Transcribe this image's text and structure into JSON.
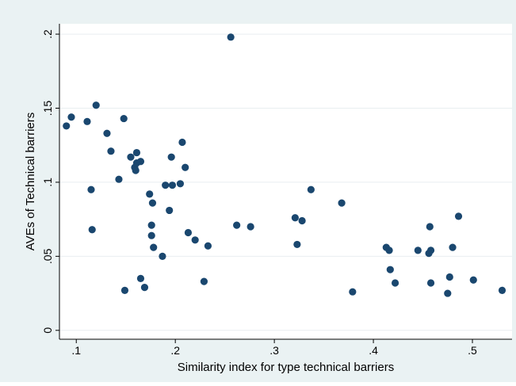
{
  "chart_data": {
    "type": "scatter",
    "title": "",
    "xlabel": "Similarity index for type technical barriers",
    "ylabel": "AVEs of Technical barriers",
    "xlim": [
      0.083,
      0.54
    ],
    "ylim": [
      -0.006,
      0.207
    ],
    "xticks": [
      0.1,
      0.2,
      0.3,
      0.4,
      0.5
    ],
    "xtick_labels": [
      ".1",
      ".2",
      ".3",
      ".4",
      ".5"
    ],
    "yticks": [
      0,
      0.05,
      0.1,
      0.15,
      0.2
    ],
    "ytick_labels": [
      "0",
      ".05",
      ".1",
      ".15",
      ".2"
    ],
    "grid": "horizontal",
    "legend": "none",
    "colors": {
      "outer_background": "#eaf2f3",
      "plot_background": "#ffffff",
      "grid": "#e9eef0",
      "marker": "#1a476f",
      "text": "#000000"
    },
    "points": [
      {
        "x": 0.09,
        "y": 0.138
      },
      {
        "x": 0.095,
        "y": 0.144
      },
      {
        "x": 0.111,
        "y": 0.141
      },
      {
        "x": 0.115,
        "y": 0.095
      },
      {
        "x": 0.116,
        "y": 0.068
      },
      {
        "x": 0.12,
        "y": 0.152
      },
      {
        "x": 0.131,
        "y": 0.133
      },
      {
        "x": 0.135,
        "y": 0.121
      },
      {
        "x": 0.143,
        "y": 0.102
      },
      {
        "x": 0.148,
        "y": 0.143
      },
      {
        "x": 0.149,
        "y": 0.027
      },
      {
        "x": 0.155,
        "y": 0.117
      },
      {
        "x": 0.159,
        "y": 0.11
      },
      {
        "x": 0.16,
        "y": 0.108
      },
      {
        "x": 0.161,
        "y": 0.113
      },
      {
        "x": 0.161,
        "y": 0.12
      },
      {
        "x": 0.165,
        "y": 0.114
      },
      {
        "x": 0.165,
        "y": 0.035
      },
      {
        "x": 0.169,
        "y": 0.029
      },
      {
        "x": 0.174,
        "y": 0.092
      },
      {
        "x": 0.176,
        "y": 0.071
      },
      {
        "x": 0.176,
        "y": 0.064
      },
      {
        "x": 0.177,
        "y": 0.086
      },
      {
        "x": 0.178,
        "y": 0.056
      },
      {
        "x": 0.187,
        "y": 0.05
      },
      {
        "x": 0.19,
        "y": 0.098
      },
      {
        "x": 0.194,
        "y": 0.081
      },
      {
        "x": 0.196,
        "y": 0.117
      },
      {
        "x": 0.197,
        "y": 0.098
      },
      {
        "x": 0.205,
        "y": 0.099
      },
      {
        "x": 0.207,
        "y": 0.127
      },
      {
        "x": 0.21,
        "y": 0.11
      },
      {
        "x": 0.213,
        "y": 0.066
      },
      {
        "x": 0.22,
        "y": 0.061
      },
      {
        "x": 0.229,
        "y": 0.033
      },
      {
        "x": 0.233,
        "y": 0.057
      },
      {
        "x": 0.256,
        "y": 0.198
      },
      {
        "x": 0.262,
        "y": 0.071
      },
      {
        "x": 0.276,
        "y": 0.07
      },
      {
        "x": 0.321,
        "y": 0.076
      },
      {
        "x": 0.323,
        "y": 0.058
      },
      {
        "x": 0.328,
        "y": 0.074
      },
      {
        "x": 0.337,
        "y": 0.095
      },
      {
        "x": 0.368,
        "y": 0.086
      },
      {
        "x": 0.379,
        "y": 0.026
      },
      {
        "x": 0.413,
        "y": 0.056
      },
      {
        "x": 0.416,
        "y": 0.054
      },
      {
        "x": 0.417,
        "y": 0.041
      },
      {
        "x": 0.422,
        "y": 0.032
      },
      {
        "x": 0.445,
        "y": 0.054
      },
      {
        "x": 0.456,
        "y": 0.052
      },
      {
        "x": 0.457,
        "y": 0.07
      },
      {
        "x": 0.458,
        "y": 0.054
      },
      {
        "x": 0.458,
        "y": 0.032
      },
      {
        "x": 0.475,
        "y": 0.025
      },
      {
        "x": 0.477,
        "y": 0.036
      },
      {
        "x": 0.48,
        "y": 0.056
      },
      {
        "x": 0.486,
        "y": 0.077
      },
      {
        "x": 0.501,
        "y": 0.034
      },
      {
        "x": 0.53,
        "y": 0.027
      }
    ]
  }
}
